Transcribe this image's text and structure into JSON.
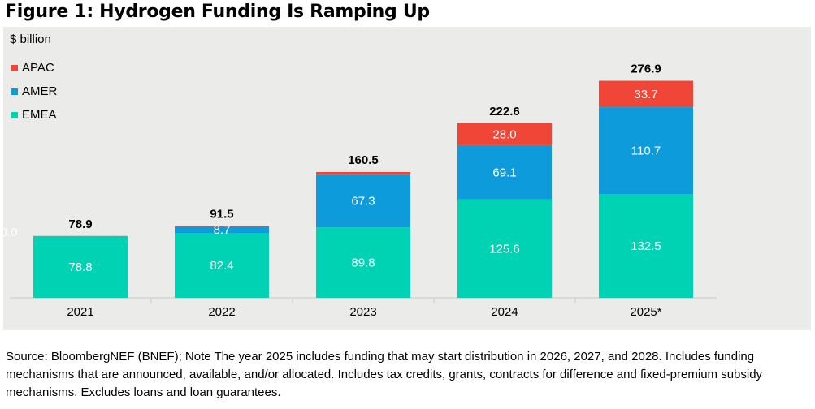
{
  "figure_title": "Figure 1: Hydrogen Funding Is Ramping Up",
  "source_note": "Source: BloombergNEF (BNEF); Note The year 2025 includes funding that may start distribution in 2026, 2027, and 2028. Includes funding mechanisms that are announced, available, and/or allocated. Includes tax credits, grants, contracts for difference and fixed-premium subsidy mechanisms. Excludes loans and loan guarantees.",
  "chart_data": {
    "type": "bar",
    "stacked": true,
    "unit_label": "$ billion",
    "categories": [
      "2021",
      "2022",
      "2023",
      "2024",
      "2025*"
    ],
    "series": [
      {
        "name": "EMEA",
        "color": "#00d2b4",
        "values": [
          78.8,
          82.4,
          89.8,
          125.6,
          132.5
        ],
        "labels": [
          "78.8",
          "82.4",
          "89.8",
          "125.6",
          "132.5"
        ]
      },
      {
        "name": "AMER",
        "color": "#0e9bdc",
        "values": [
          0.0,
          8.7,
          67.3,
          69.1,
          110.7
        ],
        "labels": [
          "0.0",
          "8.7",
          "67.3",
          "69.1",
          "110.7"
        ]
      },
      {
        "name": "APAC",
        "color": "#f04637",
        "values": [
          0.1,
          0.4,
          3.4,
          28.0,
          33.7
        ],
        "labels": [
          "",
          "",
          "",
          "28.0",
          "33.7"
        ]
      }
    ],
    "totals": [
      "78.9",
      "91.5",
      "160.5",
      "222.6",
      "276.9"
    ],
    "legend_order": [
      "APAC",
      "AMER",
      "EMEA"
    ],
    "legend_position": "top-left",
    "ylim": [
      0,
      300
    ],
    "xlabel": "",
    "ylabel": "",
    "grid": false
  }
}
